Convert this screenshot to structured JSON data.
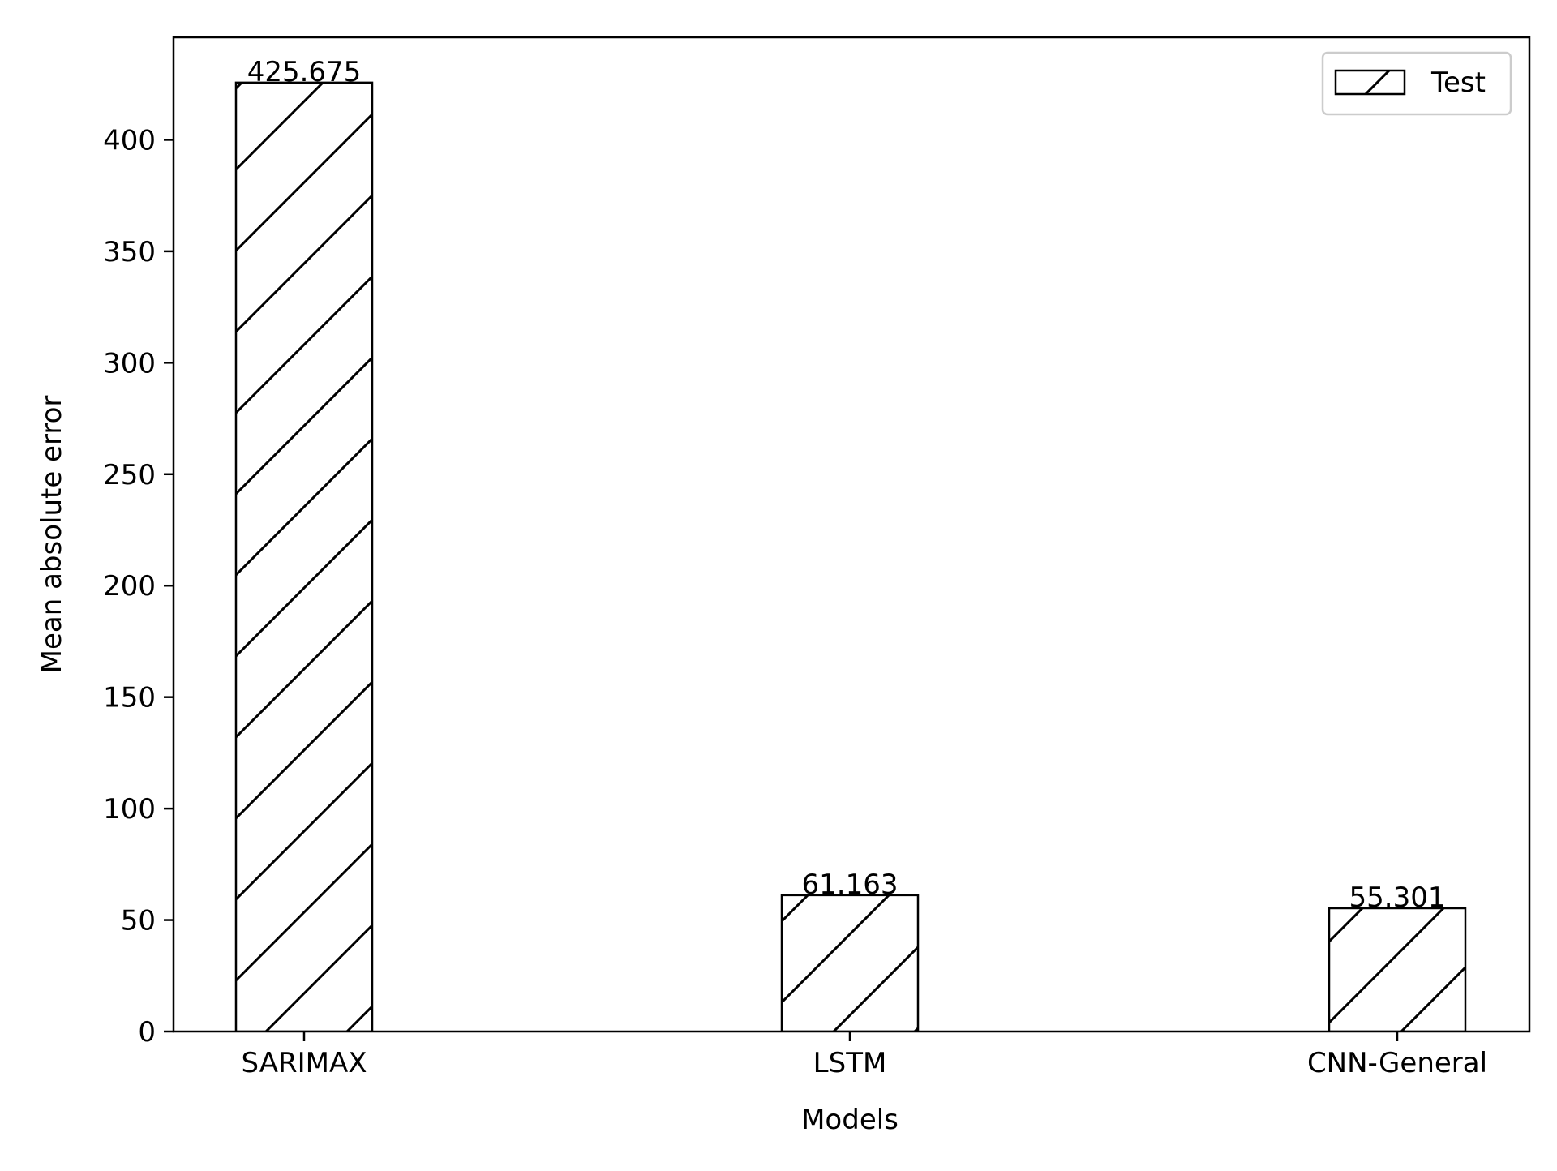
{
  "chart_data": {
    "type": "bar",
    "title": "",
    "xlabel": "Models",
    "ylabel": "Mean absolute error",
    "categories": [
      "SARIMAX",
      "LSTM",
      "CNN-General"
    ],
    "series": [
      {
        "name": "Test",
        "values": [
          425.675,
          61.163,
          55.301
        ],
        "pattern": "diagonal-hatch"
      }
    ],
    "data_labels": [
      "425.675",
      "61.163",
      "55.301"
    ],
    "yticks": [
      0,
      50,
      100,
      150,
      200,
      250,
      300,
      350,
      400
    ],
    "ylim": [
      0,
      446
    ],
    "grid": false,
    "legend": {
      "position": "top-right",
      "entries": [
        "Test"
      ]
    },
    "colors": {
      "bar_edge": "#000000",
      "bar_fill": "#ffffff",
      "hatch": "#000000"
    }
  }
}
